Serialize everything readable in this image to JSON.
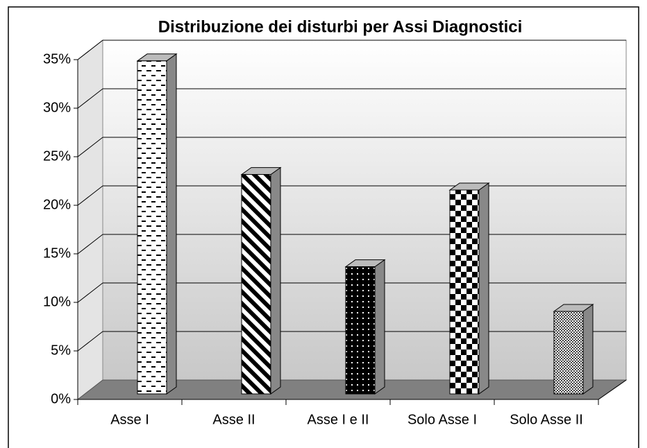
{
  "chart_data": {
    "type": "bar3d",
    "title": "Distribuzione dei disturbi per Assi Diagnostici",
    "categories": [
      "Asse I",
      "Asse II",
      "Asse I e II",
      "Solo Asse I",
      "Solo Asse II"
    ],
    "values": [
      34.3,
      22.6,
      13.1,
      21.0,
      8.5
    ],
    "ylim": [
      0,
      35
    ],
    "yticks": [
      {
        "value": 0,
        "label": "0%"
      },
      {
        "value": 5,
        "label": "5%"
      },
      {
        "value": 10,
        "label": "10%"
      },
      {
        "value": 15,
        "label": "15%"
      },
      {
        "value": 20,
        "label": "20%"
      },
      {
        "value": 25,
        "label": "25%"
      },
      {
        "value": 30,
        "label": "30%"
      },
      {
        "value": 35,
        "label": "35%"
      }
    ],
    "grid": true
  }
}
